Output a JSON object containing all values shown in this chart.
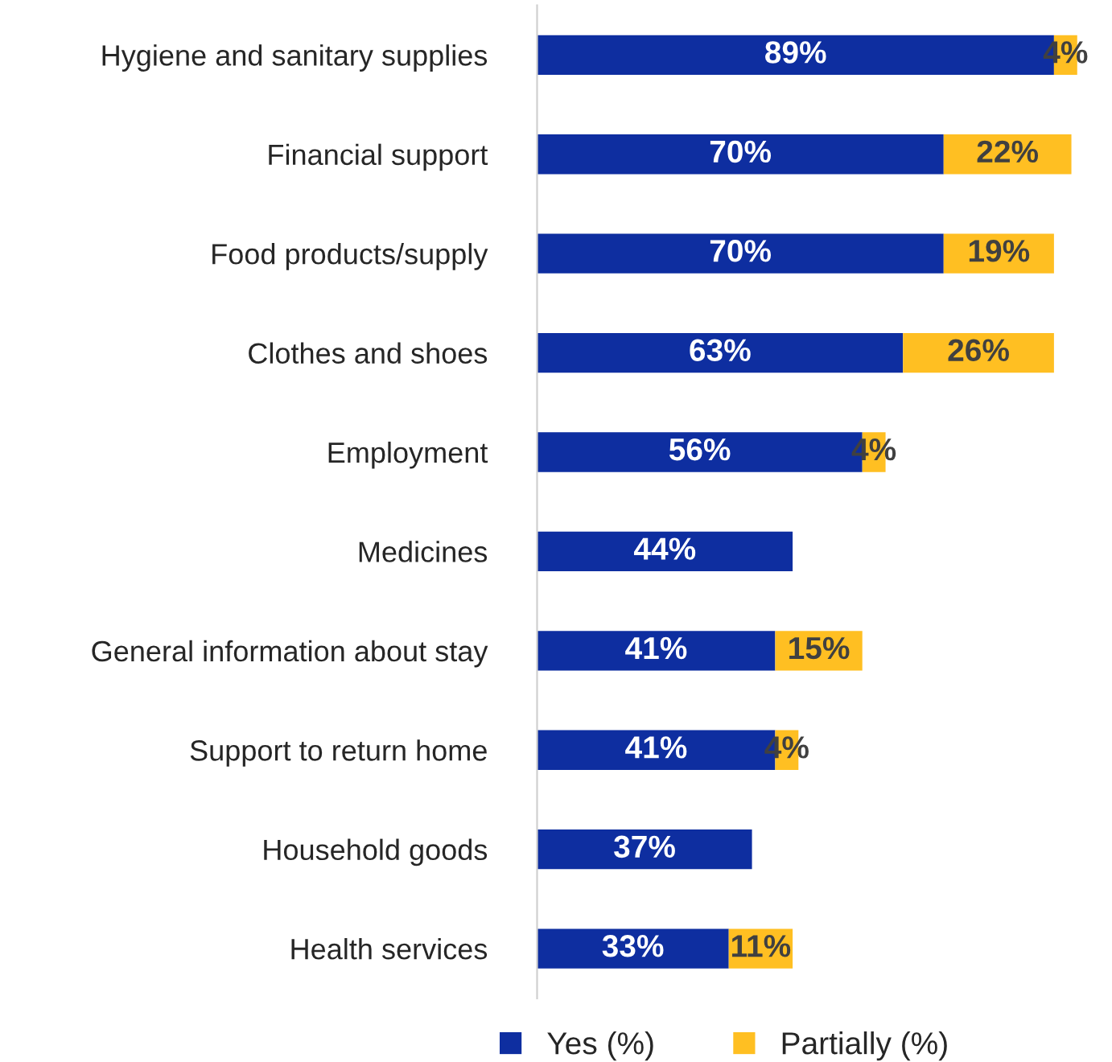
{
  "chart_data": {
    "type": "bar",
    "orientation": "horizontal",
    "stacked": true,
    "legend": "bottom",
    "grid": false,
    "categories": [
      "Hygiene and sanitary supplies",
      "Financial support",
      "Food products/supply",
      "Clothes and shoes",
      "Employment",
      "Medicines",
      "General information about stay",
      "Support to return home",
      "Household goods",
      "Health services"
    ],
    "series": [
      {
        "name": "Yes (%)",
        "color": "#0e2ea0",
        "values": [
          89,
          70,
          70,
          63,
          56,
          44,
          41,
          41,
          37,
          33
        ],
        "value_labels": [
          "89%",
          "70%",
          "70%",
          "63%",
          "56%",
          "44%",
          "41%",
          "41%",
          "37%",
          "33%"
        ]
      },
      {
        "name": "Partially (%)",
        "color": "#ffbf22",
        "values": [
          4,
          22,
          19,
          26,
          4,
          null,
          15,
          4,
          null,
          11
        ],
        "value_labels": [
          "4%",
          "22%",
          "19%",
          "26%",
          "4%",
          null,
          "15%",
          "4%",
          null,
          "11%"
        ]
      }
    ]
  }
}
